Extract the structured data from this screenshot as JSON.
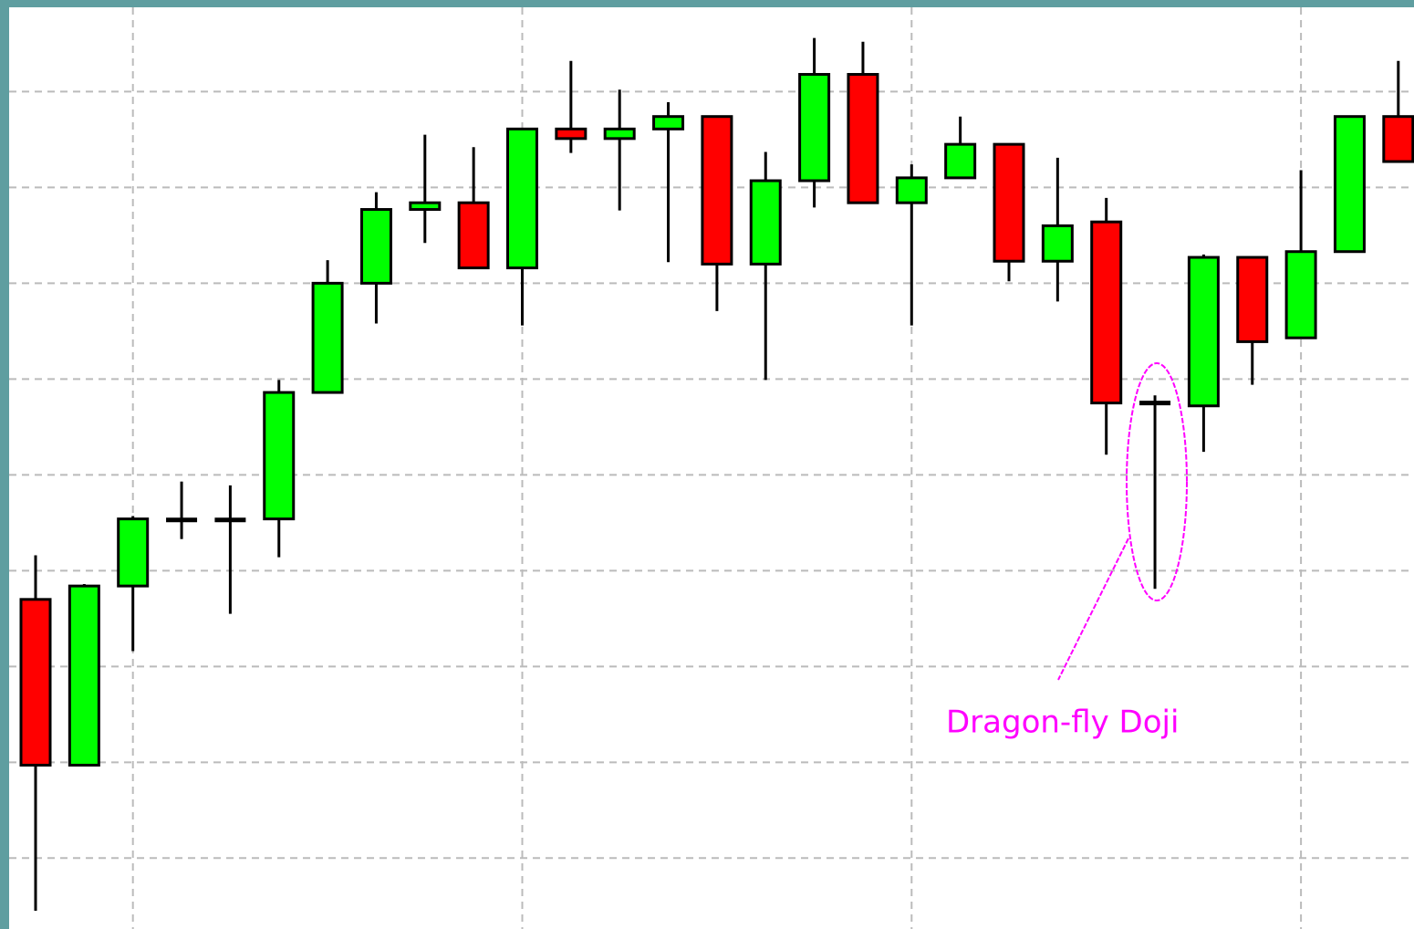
{
  "chart_data": {
    "type": "candlestick",
    "annotation": "Dragon-fly Doji",
    "categories": [
      null,
      null,
      null,
      null,
      null,
      null,
      null,
      null,
      null,
      null,
      null,
      null,
      null,
      null,
      null,
      null,
      null,
      null,
      null,
      null,
      null,
      null,
      null,
      null,
      null,
      null,
      null,
      null,
      null
    ],
    "open": [
      37.0,
      19.7,
      38.4,
      45.3,
      45.3,
      45.4,
      58.6,
      70.0,
      77.7,
      78.4,
      71.6,
      86.1,
      85.1,
      86.1,
      87.4,
      72.0,
      80.7,
      91.8,
      78.4,
      81.0,
      84.5,
      72.3,
      76.4,
      57.5,
      57.2,
      72.7,
      64.3,
      73.3,
      87.4
    ],
    "high": [
      41.6,
      38.6,
      45.7,
      49.3,
      48.9,
      59.9,
      72.4,
      79.5,
      85.5,
      84.2,
      86.1,
      93.2,
      90.2,
      88.9,
      87.4,
      83.7,
      95.6,
      95.2,
      82.4,
      87.4,
      84.5,
      83.1,
      78.9,
      58.3,
      73.0,
      72.7,
      81.8,
      87.4,
      93.2
    ],
    "low": [
      4.5,
      19.7,
      31.6,
      43.3,
      35.5,
      41.4,
      58.6,
      65.8,
      74.2,
      71.6,
      65.6,
      83.6,
      77.6,
      72.2,
      67.1,
      59.9,
      77.9,
      78.4,
      65.6,
      81.0,
      70.2,
      68.1,
      52.1,
      38.1,
      52.4,
      59.4,
      64.3,
      73.3,
      82.7
    ],
    "close": [
      19.7,
      38.4,
      45.4,
      45.3,
      45.3,
      58.6,
      70.0,
      77.7,
      78.4,
      71.6,
      86.1,
      85.1,
      86.1,
      87.4,
      72.0,
      80.7,
      91.8,
      78.4,
      81.0,
      84.5,
      72.3,
      76.0,
      57.5,
      57.5,
      72.7,
      63.9,
      73.3,
      87.4,
      82.7
    ],
    "up_color": "#00ff00",
    "down_color": "#ff0000",
    "ylim": [
      2.6,
      98.8
    ],
    "yticks": [
      10,
      20,
      30,
      40,
      50,
      60,
      70,
      80,
      90
    ],
    "grid": true
  }
}
